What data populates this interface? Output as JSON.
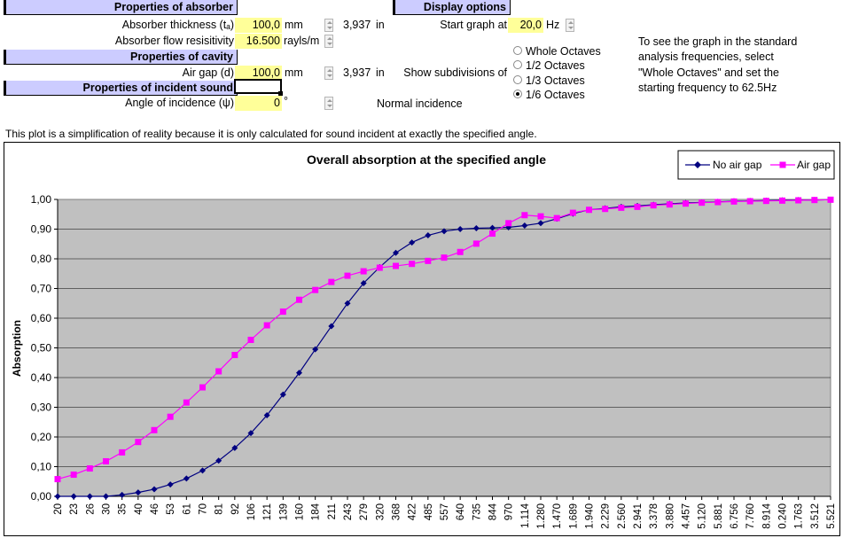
{
  "absorber": {
    "header": "Properties of absorber",
    "thickness_label": "Absorber thickness (tₐ)",
    "thickness_value": "100,0",
    "thickness_unit": "mm",
    "thickness_inches": "3,937",
    "thickness_inches_unit": "in",
    "flow_label": "Absorber flow resisitivity",
    "flow_value": "16.500",
    "flow_unit": "rayls/m"
  },
  "cavity": {
    "header": "Properties of cavity",
    "gap_label": "Air gap (d)",
    "gap_value": "100,0",
    "gap_unit": "mm",
    "gap_inches": "3,937",
    "gap_inches_unit": "in"
  },
  "incident": {
    "header": "Properties of incident sound",
    "angle_label": "Angle of incidence (ψ)",
    "angle_value": "0",
    "angle_unit": "°",
    "incidence_text": "Normal incidence"
  },
  "display": {
    "header": "Display options",
    "start_label": "Start graph at",
    "start_value": "20,0",
    "start_unit": "Hz",
    "subdiv_label": "Show subdivisions of",
    "options": [
      "Whole Octaves",
      "1/2 Octaves",
      "1/3 Octaves",
      "1/6 Octaves"
    ],
    "selected_option": "1/6 Octaves"
  },
  "info_lines": [
    "To see the graph in the standard",
    "analysis frequencies, select",
    "\"Whole Octaves\" and set the",
    "starting frequency to 62.5Hz"
  ],
  "note": "This plot is a simplification of reality because it is only calculated for sound incident at exactly the specified angle.",
  "colors": {
    "header_bg": "#ccccff",
    "input_bg": "#ffff99",
    "plot_bg": "#c0c0c0",
    "series_no_gap": "#000080",
    "series_gap": "#ff00ff"
  },
  "chart_data": {
    "type": "line",
    "title": "Overall absorption at the specified angle",
    "ylabel": "Absorption",
    "xlabel": "",
    "ylim": [
      0,
      1
    ],
    "y_ticks": [
      "0,00",
      "0,10",
      "0,20",
      "0,30",
      "0,40",
      "0,50",
      "0,60",
      "0,70",
      "0,80",
      "0,90",
      "1,00"
    ],
    "grid": "horizontal",
    "legend": "top-right",
    "x": [
      "20",
      "23",
      "26",
      "30",
      "35",
      "40",
      "46",
      "53",
      "61",
      "70",
      "81",
      "92",
      "106",
      "121",
      "139",
      "160",
      "184",
      "211",
      "243",
      "279",
      "320",
      "368",
      "422",
      "485",
      "557",
      "640",
      "735",
      "844",
      "970",
      "1.114",
      "1.280",
      "1.470",
      "1.689",
      "1.940",
      "2.229",
      "2.560",
      "2.941",
      "3.378",
      "3.880",
      "4.457",
      "5.120",
      "5.881",
      "6.756",
      "7.760",
      "8.914",
      "0.240",
      "1.763",
      "3.512",
      "5.521"
    ],
    "series": [
      {
        "name": "No air gap",
        "color": "#000080",
        "marker": "diamond",
        "values": [
          0.0,
          0.0,
          0.0,
          0.0,
          0.005,
          0.013,
          0.024,
          0.04,
          0.06,
          0.087,
          0.12,
          0.163,
          0.213,
          0.273,
          0.343,
          0.416,
          0.495,
          0.573,
          0.65,
          0.718,
          0.772,
          0.82,
          0.855,
          0.879,
          0.893,
          0.9,
          0.903,
          0.904,
          0.906,
          0.912,
          0.92,
          0.935,
          0.952,
          0.965,
          0.97,
          0.975,
          0.978,
          0.982,
          0.985,
          0.988,
          0.99,
          0.992,
          0.994,
          0.995,
          0.996,
          0.997,
          0.998,
          0.998,
          0.999
        ]
      },
      {
        "name": "Air gap",
        "color": "#ff00ff",
        "marker": "square",
        "values": [
          0.058,
          0.073,
          0.094,
          0.118,
          0.148,
          0.183,
          0.223,
          0.268,
          0.316,
          0.367,
          0.421,
          0.476,
          0.527,
          0.576,
          0.622,
          0.662,
          0.695,
          0.722,
          0.743,
          0.758,
          0.77,
          0.776,
          0.783,
          0.793,
          0.804,
          0.823,
          0.851,
          0.885,
          0.92,
          0.947,
          0.943,
          0.937,
          0.955,
          0.965,
          0.968,
          0.972,
          0.975,
          0.98,
          0.983,
          0.986,
          0.989,
          0.991,
          0.993,
          0.994,
          0.995,
          0.996,
          0.997,
          0.998,
          0.999
        ]
      }
    ]
  }
}
